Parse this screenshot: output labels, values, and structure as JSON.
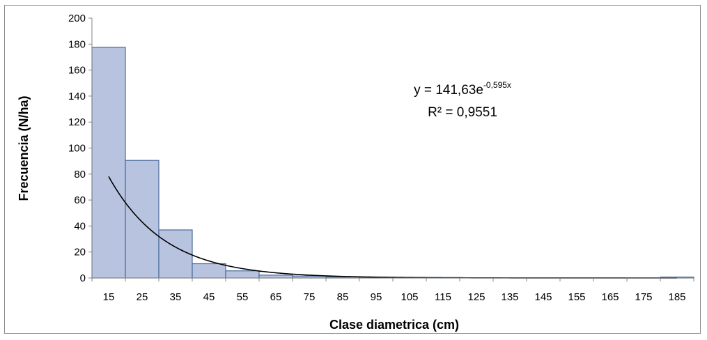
{
  "chart_data": {
    "type": "bar",
    "xlabel": "Clase diametrica (cm)",
    "ylabel": "Frecuencia (N/ha)",
    "categories": [
      "15",
      "25",
      "35",
      "45",
      "55",
      "65",
      "75",
      "85",
      "95",
      "105",
      "115",
      "125",
      "135",
      "145",
      "155",
      "165",
      "175",
      "185"
    ],
    "values": [
      177.5,
      90.5,
      37,
      11,
      5.5,
      2.2,
      1.5,
      0.8,
      0.5,
      0.3,
      0.3,
      0.2,
      0.2,
      0.2,
      0.2,
      0.2,
      0.2,
      0.7
    ],
    "ylim": [
      0,
      200
    ],
    "yticks": [
      0,
      20,
      40,
      60,
      80,
      100,
      120,
      140,
      160,
      180,
      200
    ],
    "bar_fill": "#b8c4df",
    "bar_stroke": "#4a6a9a",
    "grid": false,
    "legend": "none",
    "trendline": {
      "type": "exponential",
      "a": 141.63,
      "b": -0.595,
      "x_index_start": 1,
      "color": "#000000"
    },
    "annotations": {
      "equation_prefix": "y = 141,63e",
      "equation_exponent": "-0,595x",
      "r_squared": "R² = 0,9551"
    }
  }
}
